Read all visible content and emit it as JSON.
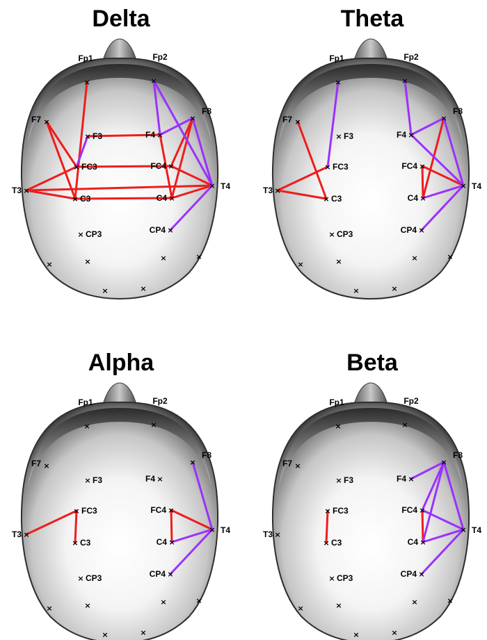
{
  "colors": {
    "between_hemisphere_or_left_edge": "#ef1c1c",
    "right_side_edge": "#9b30ff",
    "scalp_light": "#ffffff",
    "scalp_dark": "#2a2a2a",
    "marker": "#000000"
  },
  "electrodes": [
    "Fp1",
    "Fp2",
    "F7",
    "F8",
    "F3",
    "F4",
    "FC3",
    "FC4",
    "T3",
    "T4",
    "C3",
    "C4",
    "CP3",
    "CP4"
  ],
  "unlabeled_markers": 6,
  "panels": [
    {
      "title": "Delta",
      "edges": [
        {
          "from": "Fp1",
          "to": "C3",
          "color": "red"
        },
        {
          "from": "F7",
          "to": "FC3",
          "color": "red"
        },
        {
          "from": "F7",
          "to": "C3",
          "color": "red"
        },
        {
          "from": "F3",
          "to": "F4",
          "color": "red"
        },
        {
          "from": "FC3",
          "to": "FC4",
          "color": "red"
        },
        {
          "from": "T3",
          "to": "FC3",
          "color": "red"
        },
        {
          "from": "T3",
          "to": "C3",
          "color": "red"
        },
        {
          "from": "T3",
          "to": "T4",
          "color": "red"
        },
        {
          "from": "C3",
          "to": "C4",
          "color": "red"
        },
        {
          "from": "F8",
          "to": "C4",
          "color": "red"
        },
        {
          "from": "F8",
          "to": "FC4",
          "color": "red"
        },
        {
          "from": "F4",
          "to": "C4",
          "color": "red"
        },
        {
          "from": "FC4",
          "to": "T4",
          "color": "red"
        },
        {
          "from": "C4",
          "to": "T4",
          "color": "red"
        },
        {
          "from": "F3",
          "to": "FC3",
          "color": "purple"
        },
        {
          "from": "Fp2",
          "to": "F4",
          "color": "purple"
        },
        {
          "from": "Fp2",
          "to": "T4",
          "color": "purple"
        },
        {
          "from": "F8",
          "to": "F4",
          "color": "purple"
        },
        {
          "from": "F8",
          "to": "T4",
          "color": "purple"
        },
        {
          "from": "T4",
          "to": "CP4",
          "color": "purple"
        }
      ]
    },
    {
      "title": "Theta",
      "edges": [
        {
          "from": "F7",
          "to": "C3",
          "color": "red"
        },
        {
          "from": "T3",
          "to": "FC3",
          "color": "red"
        },
        {
          "from": "T3",
          "to": "C3",
          "color": "red"
        },
        {
          "from": "F8",
          "to": "C4",
          "color": "red"
        },
        {
          "from": "FC4",
          "to": "C4",
          "color": "red"
        },
        {
          "from": "FC4",
          "to": "T4",
          "color": "red"
        },
        {
          "from": "Fp1",
          "to": "FC3",
          "color": "purple"
        },
        {
          "from": "Fp2",
          "to": "F4",
          "color": "purple"
        },
        {
          "from": "F4",
          "to": "F8",
          "color": "purple"
        },
        {
          "from": "F4",
          "to": "T4",
          "color": "purple"
        },
        {
          "from": "F8",
          "to": "T4",
          "color": "purple"
        },
        {
          "from": "C4",
          "to": "T4",
          "color": "purple"
        },
        {
          "from": "T4",
          "to": "CP4",
          "color": "purple"
        }
      ]
    },
    {
      "title": "Alpha",
      "edges": [
        {
          "from": "T3",
          "to": "FC3",
          "color": "red"
        },
        {
          "from": "FC3",
          "to": "C3",
          "color": "red"
        },
        {
          "from": "FC4",
          "to": "C4",
          "color": "red"
        },
        {
          "from": "FC4",
          "to": "T4",
          "color": "red"
        },
        {
          "from": "F8",
          "to": "T4",
          "color": "purple"
        },
        {
          "from": "C4",
          "to": "T4",
          "color": "purple"
        },
        {
          "from": "T4",
          "to": "CP4",
          "color": "purple"
        }
      ]
    },
    {
      "title": "Beta",
      "edges": [
        {
          "from": "FC3",
          "to": "C3",
          "color": "red"
        },
        {
          "from": "FC4",
          "to": "C4",
          "color": "red"
        },
        {
          "from": "F4",
          "to": "F8",
          "color": "purple"
        },
        {
          "from": "F8",
          "to": "FC4",
          "color": "purple"
        },
        {
          "from": "F8",
          "to": "C4",
          "color": "purple"
        },
        {
          "from": "F8",
          "to": "T4",
          "color": "purple"
        },
        {
          "from": "FC4",
          "to": "T4",
          "color": "purple"
        },
        {
          "from": "C4",
          "to": "T4",
          "color": "purple"
        },
        {
          "from": "T4",
          "to": "CP4",
          "color": "purple"
        }
      ]
    }
  ]
}
